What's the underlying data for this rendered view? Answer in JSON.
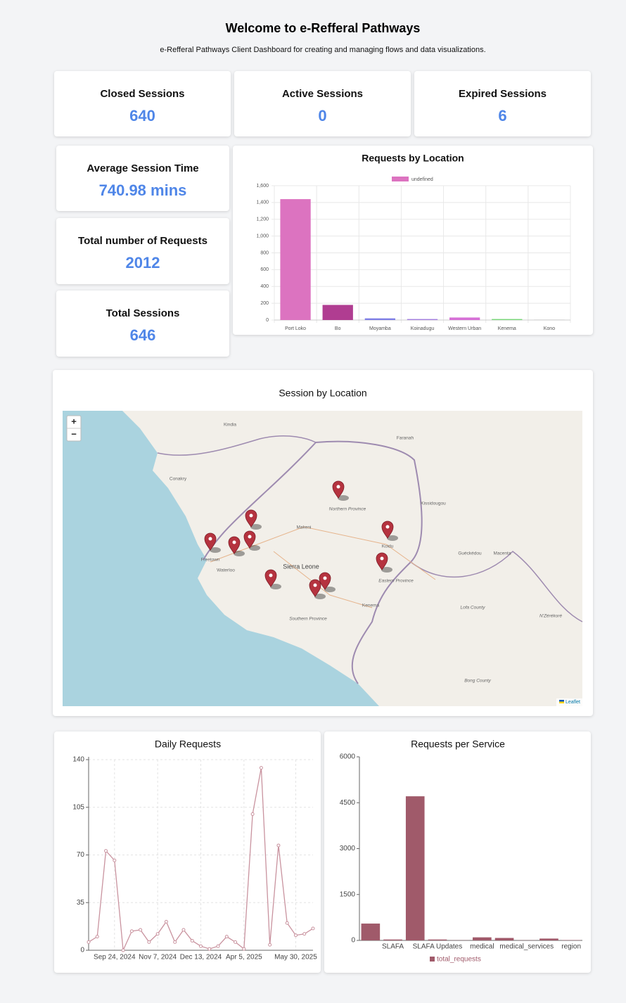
{
  "header": {
    "title": "Welcome to e-Refferal Pathways",
    "subtitle": "e-Refferal Pathways Client Dashboard for creating and managing flows and data visualizations."
  },
  "stats": [
    {
      "label": "Closed Sessions",
      "value": 640
    },
    {
      "label": "Active Sessions",
      "value": 0
    },
    {
      "label": "Expired Sessions",
      "value": 6
    },
    {
      "label": "Average Session Time",
      "value": "740.98 mins"
    },
    {
      "label": "Total number of Requests",
      "value": 2012
    },
    {
      "label": "Total Sessions",
      "value": 646
    }
  ],
  "location_chart": {
    "type": "bar",
    "title": "Requests by Location",
    "legend": "undefined",
    "categories": [
      "Port Loko",
      "Bo",
      "Moyamba",
      "Koinadugu",
      "Western Urban",
      "Kenema",
      "Kono"
    ],
    "values": [
      1440,
      180,
      20,
      12,
      30,
      12,
      2
    ],
    "colors": [
      "#dc73c0",
      "#b03d91",
      "#7f7fe6",
      "#a57fe0",
      "#d66fd6",
      "#7ad87a",
      "#aaaaaa"
    ],
    "legend_color": "#dc73c0",
    "ylim": [
      0,
      1600
    ],
    "yticks": [
      0,
      200,
      400,
      600,
      800,
      {
        "value": 1000,
        "label": "1,000"
      },
      {
        "value": 1200,
        "label": "1,200"
      },
      {
        "value": 1400,
        "label": "1,400"
      },
      {
        "value": 1600,
        "label": "1,600"
      }
    ],
    "grid": true
  },
  "map": {
    "title": "Session by Location",
    "zoom_in": "+",
    "zoom_out": "−",
    "attribution": "Leaflet",
    "places": [
      "Conakry",
      "Kindia",
      "Faranah",
      "Freetown",
      "Waterloo",
      "Makeni",
      "Sierra Leone",
      "Kenema",
      "Koidu",
      "Kissidougou",
      "Guéckédou",
      "Macenta",
      "Northern Province",
      "Southern Province",
      "Eastern Province",
      "Lofa County",
      "Bong County",
      "N'Zérékoré"
    ]
  },
  "daily_chart": {
    "type": "line",
    "title": "Daily Requests",
    "categories": [
      null,
      null,
      null,
      "Sep 24, 2024",
      null,
      null,
      null,
      null,
      "Nov 7, 2024",
      null,
      null,
      null,
      null,
      "Dec 13, 2024",
      null,
      null,
      null,
      null,
      "Apr 5, 2025",
      null,
      null,
      null,
      null,
      null,
      "May 30, 2025",
      null,
      null
    ],
    "values": [
      6,
      10,
      73,
      66,
      0,
      14,
      15,
      6,
      12,
      21,
      6,
      15,
      7,
      3,
      1,
      3,
      10,
      6,
      1,
      100,
      134,
      4,
      77,
      20,
      11,
      12,
      16
    ],
    "color": "#c9939f",
    "ylim": [
      0,
      140
    ],
    "yticks": [
      0,
      35,
      70,
      105,
      140
    ],
    "grid": true
  },
  "service_chart": {
    "type": "bar",
    "title": "Requests per Service",
    "categories": [
      null,
      "SLAFA",
      null,
      "SLAFA Updates",
      null,
      "medical",
      null,
      "medical_services",
      null,
      "region"
    ],
    "series": [
      {
        "name": "total_requests",
        "color": "#a05a6a",
        "values": [
          550,
          30,
          4710,
          30,
          5,
          100,
          80,
          5,
          60,
          10
        ]
      }
    ],
    "ylim": [
      0,
      6000
    ],
    "yticks": [
      0,
      1500,
      3000,
      4500,
      6000
    ]
  }
}
